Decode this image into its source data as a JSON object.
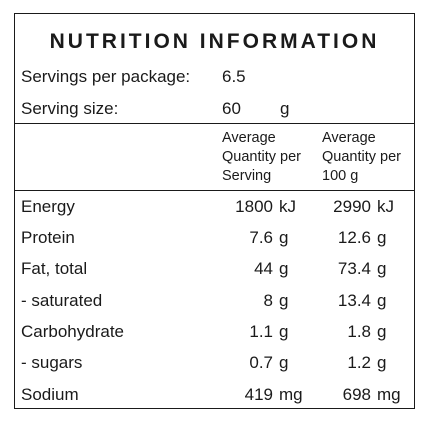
{
  "title": "NUTRITION INFORMATION",
  "servings_per_package": {
    "label": "Servings per package:",
    "value": "6.5"
  },
  "serving_size": {
    "label": "Serving size:",
    "value": "60",
    "unit": "g"
  },
  "column_headers": {
    "per_serving": [
      "Average",
      "Quantity per",
      "Serving"
    ],
    "per_100g": [
      "Average",
      "Quantity per",
      "100 g"
    ]
  },
  "rows": [
    {
      "label": "Energy",
      "serving": "1800",
      "serving_unit": "kJ",
      "per100": "2990",
      "per100_unit": "kJ"
    },
    {
      "label": "Protein",
      "serving": "7.6",
      "serving_unit": "g",
      "per100": "12.6",
      "per100_unit": "g"
    },
    {
      "label": "Fat, total",
      "serving": "44",
      "serving_unit": "g",
      "per100": "73.4",
      "per100_unit": "g"
    },
    {
      "label": "- saturated",
      "serving": "8",
      "serving_unit": "g",
      "per100": "13.4",
      "per100_unit": "g"
    },
    {
      "label": "Carbohydrate",
      "serving": "1.1",
      "serving_unit": "g",
      "per100": "1.8",
      "per100_unit": "g"
    },
    {
      "label": "- sugars",
      "serving": "0.7",
      "serving_unit": "g",
      "per100": "1.2",
      "per100_unit": "g"
    },
    {
      "label": "Sodium",
      "serving": "419",
      "serving_unit": "mg",
      "per100": "698",
      "per100_unit": "mg"
    }
  ]
}
